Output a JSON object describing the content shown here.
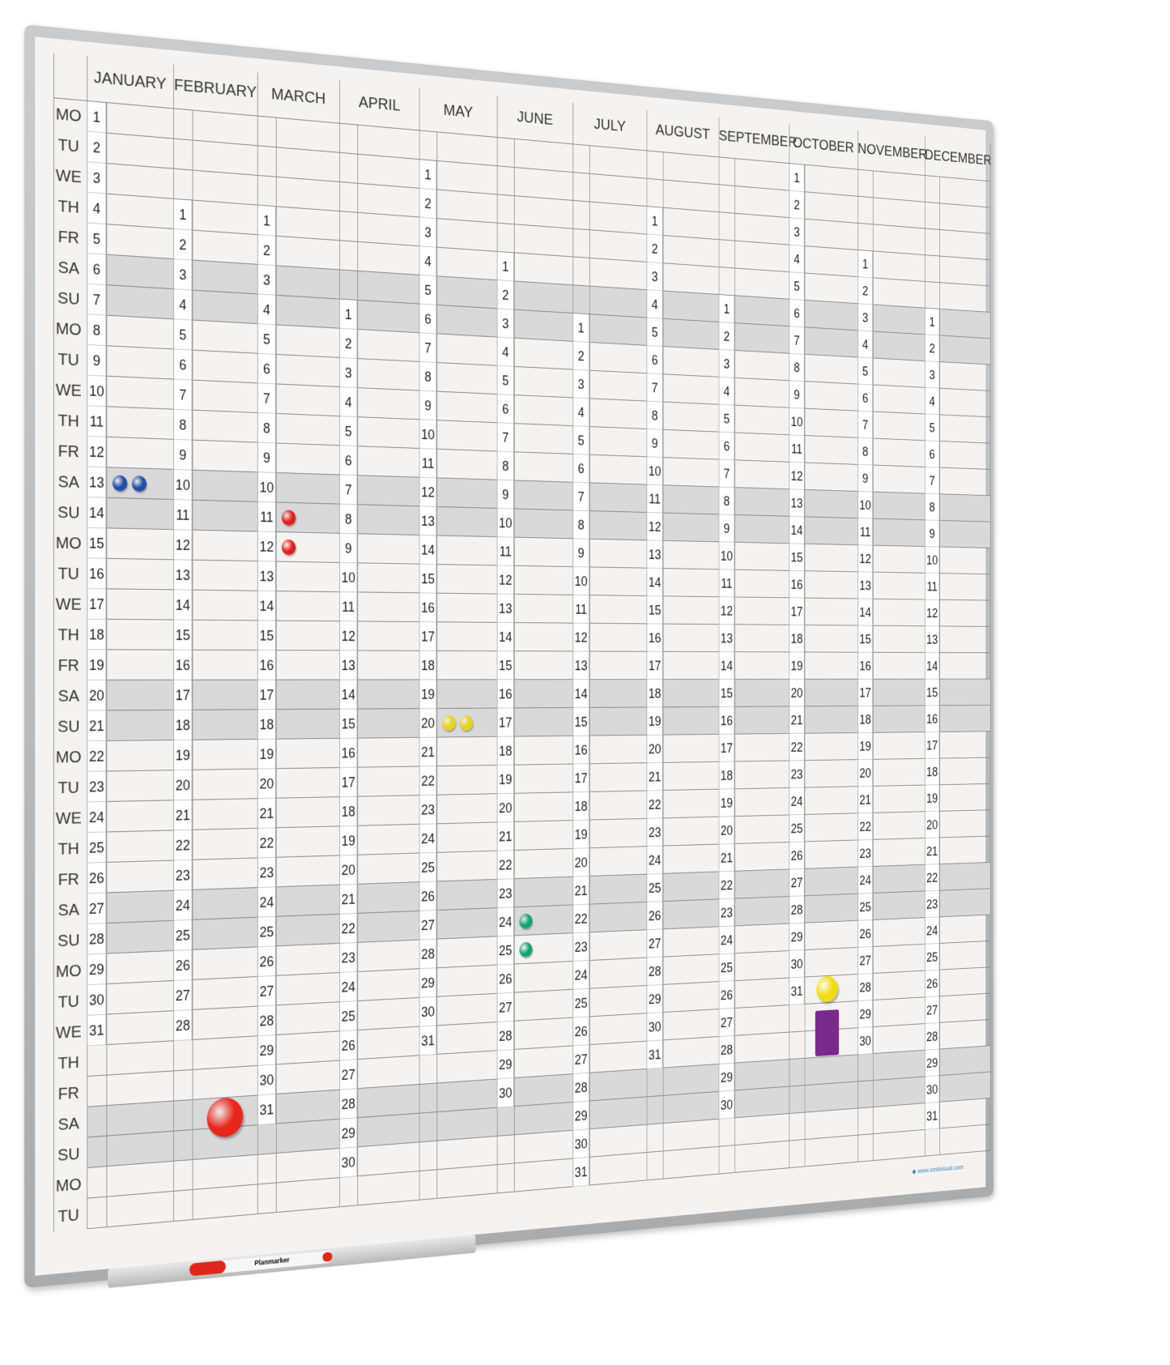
{
  "board": {
    "months": [
      "JANUARY",
      "FEBRUARY",
      "MARCH",
      "APRIL",
      "MAY",
      "JUNE",
      "JULY",
      "AUGUST",
      "SEPTEMBER",
      "OCTOBER",
      "NOVEMBER",
      "DECEMBER"
    ],
    "month_lengths": [
      31,
      28,
      31,
      30,
      31,
      30,
      31,
      31,
      30,
      31,
      30,
      31
    ],
    "month_start_weekday_index": [
      0,
      3,
      3,
      6,
      1,
      4,
      6,
      2,
      5,
      0,
      3,
      5
    ],
    "weekdays": [
      "MO",
      "TU",
      "WE",
      "TH",
      "FR",
      "SA",
      "SU"
    ],
    "row_count": 37,
    "weekend_color": "#d9d9d9",
    "marker_label": "Planmarker",
    "logo_text": "www.smitvisual.com"
  },
  "magnets": [
    {
      "color": "#1f4fa8",
      "month": 1,
      "day": 13,
      "slot": 0
    },
    {
      "color": "#1f4fa8",
      "month": 1,
      "day": 13,
      "slot": 1
    },
    {
      "color": "#e02020",
      "month": 3,
      "day": 11,
      "slot": 0
    },
    {
      "color": "#e02020",
      "month": 3,
      "day": 12,
      "slot": 0
    },
    {
      "color": "#e8d21a",
      "month": 5,
      "day": 20,
      "slot": 0
    },
    {
      "color": "#e8d21a",
      "month": 5,
      "day": 20,
      "slot": 1
    },
    {
      "color": "#18a070",
      "month": 6,
      "day": 24,
      "slot": 0
    },
    {
      "color": "#18a070",
      "month": 6,
      "day": 25,
      "slot": 0
    }
  ],
  "large_magnets": [
    {
      "color": "#e8261c",
      "shape": "circle",
      "month": 2,
      "row": 33
    },
    {
      "color": "#f2dd10",
      "shape": "circle",
      "month": 10,
      "row": 30
    },
    {
      "color": "#7a2a8a",
      "shape": "rectangle",
      "month": 10,
      "row": 31
    }
  ]
}
